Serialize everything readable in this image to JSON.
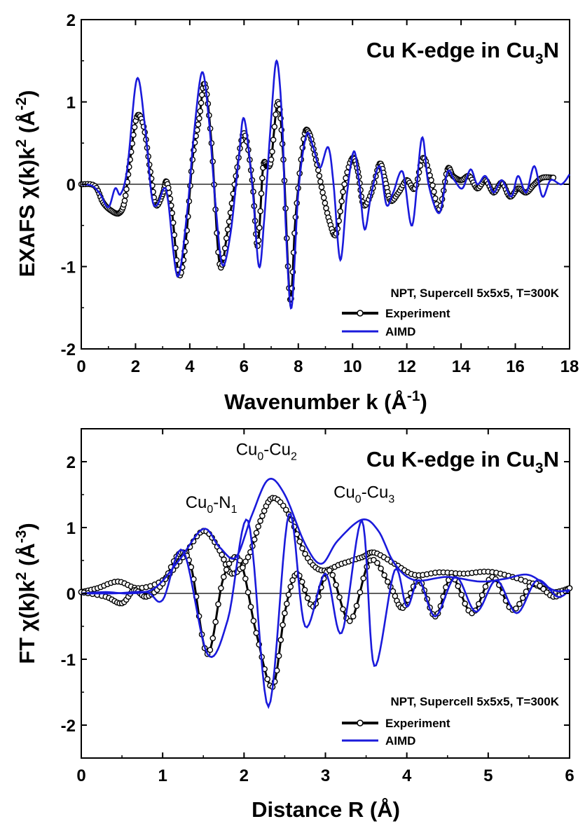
{
  "chart_data": [
    {
      "type": "line",
      "title": "Cu K-edge in Cu",
      "title_sub": "3",
      "title_tail": "N",
      "ylabel_main": "EXAFS χ(k)k",
      "ylabel_sup": "2",
      "ylabel_unit": " (Å",
      "ylabel_unit_sup": "-2",
      "ylabel_close": ")",
      "xlabel_main": "Wavenumber k (Å",
      "xlabel_sup": "-1",
      "xlabel_close": ")",
      "xlim": [
        0,
        18
      ],
      "ylim": [
        -2,
        2
      ],
      "xticks": [
        "0",
        "2",
        "4",
        "6",
        "8",
        "10",
        "12",
        "14",
        "16",
        "18"
      ],
      "yticks": [
        "-2",
        "-1",
        "0",
        "1",
        "2"
      ],
      "legend_title": "NPT, Supercell 5x5x5, T=300K",
      "legend_placement": "bottom-right",
      "grid": false,
      "series": [
        {
          "name": "Experiment",
          "style": "line-open-circles",
          "color": "#000000",
          "values": [
            [
              0,
              0
            ],
            [
              0.5,
              -0.02
            ],
            [
              0.8,
              -0.22
            ],
            [
              1.1,
              -0.32
            ],
            [
              1.4,
              -0.35
            ],
            [
              1.6,
              -0.2
            ],
            [
              1.8,
              0.3
            ],
            [
              2.05,
              0.82
            ],
            [
              2.3,
              0.7
            ],
            [
              2.55,
              0.15
            ],
            [
              2.75,
              -0.25
            ],
            [
              3.0,
              -0.12
            ],
            [
              3.15,
              0.03
            ],
            [
              3.35,
              -0.35
            ],
            [
              3.6,
              -1.1
            ],
            [
              3.85,
              -0.7
            ],
            [
              4.1,
              0.3
            ],
            [
              4.35,
              0.8
            ],
            [
              4.55,
              1.22
            ],
            [
              4.8,
              0.5
            ],
            [
              5.1,
              -0.97
            ],
            [
              5.4,
              -0.55
            ],
            [
              5.7,
              0.1
            ],
            [
              6.0,
              0.62
            ],
            [
              6.3,
              0.05
            ],
            [
              6.5,
              -0.75
            ],
            [
              6.7,
              0.2
            ],
            [
              6.85,
              0.22
            ],
            [
              7.0,
              0.3
            ],
            [
              7.25,
              1.0
            ],
            [
              7.45,
              0.3
            ],
            [
              7.7,
              -1.4
            ],
            [
              7.9,
              -0.4
            ],
            [
              8.2,
              0.55
            ],
            [
              8.4,
              0.62
            ],
            [
              8.65,
              0.3
            ],
            [
              8.9,
              -0.1
            ],
            [
              9.15,
              -0.45
            ],
            [
              9.4,
              -0.6
            ],
            [
              9.7,
              0.0
            ],
            [
              10.0,
              0.32
            ],
            [
              10.2,
              0.15
            ],
            [
              10.4,
              -0.25
            ],
            [
              10.7,
              -0.1
            ],
            [
              11.0,
              0.25
            ],
            [
              11.2,
              0.05
            ],
            [
              11.4,
              -0.2
            ],
            [
              11.7,
              -0.1
            ],
            [
              12.0,
              0.05
            ],
            [
              12.3,
              -0.05
            ],
            [
              12.6,
              0.32
            ],
            [
              12.9,
              0.05
            ],
            [
              13.2,
              -0.3
            ],
            [
              13.5,
              0.18
            ],
            [
              13.7,
              0.1
            ],
            [
              14.0,
              0.05
            ],
            [
              14.3,
              0.1
            ],
            [
              14.6,
              -0.05
            ],
            [
              14.9,
              0.05
            ],
            [
              15.2,
              -0.1
            ],
            [
              15.5,
              0.02
            ],
            [
              15.8,
              -0.15
            ],
            [
              16.1,
              -0.05
            ],
            [
              16.4,
              -0.1
            ],
            [
              16.7,
              0.0
            ],
            [
              17.0,
              0.08
            ],
            [
              17.4,
              0.08
            ]
          ]
        },
        {
          "name": "AIMD",
          "style": "line",
          "color": "#1a1adb",
          "values": [
            [
              0,
              0
            ],
            [
              0.4,
              -0.02
            ],
            [
              0.7,
              -0.12
            ],
            [
              1.0,
              -0.28
            ],
            [
              1.25,
              -0.05
            ],
            [
              1.45,
              -0.12
            ],
            [
              1.7,
              0.2
            ],
            [
              2.05,
              1.28
            ],
            [
              2.35,
              0.7
            ],
            [
              2.6,
              -0.15
            ],
            [
              2.8,
              -0.25
            ],
            [
              3.05,
              -0.05
            ],
            [
              3.2,
              -0.2
            ],
            [
              3.55,
              -1.12
            ],
            [
              3.9,
              -0.35
            ],
            [
              4.15,
              0.6
            ],
            [
              4.45,
              1.36
            ],
            [
              4.7,
              0.8
            ],
            [
              4.95,
              -0.25
            ],
            [
              5.2,
              -0.98
            ],
            [
              5.5,
              -0.6
            ],
            [
              5.8,
              0.3
            ],
            [
              6.0,
              0.8
            ],
            [
              6.3,
              0.0
            ],
            [
              6.55,
              -1.0
            ],
            [
              6.75,
              -0.4
            ],
            [
              7.0,
              0.8
            ],
            [
              7.2,
              1.5
            ],
            [
              7.4,
              0.8
            ],
            [
              7.55,
              -0.6
            ],
            [
              7.75,
              -1.5
            ],
            [
              8.0,
              -0.1
            ],
            [
              8.3,
              0.6
            ],
            [
              8.55,
              0.45
            ],
            [
              8.8,
              0.2
            ],
            [
              9.1,
              0.45
            ],
            [
              9.3,
              0.0
            ],
            [
              9.55,
              -0.92
            ],
            [
              9.8,
              -0.1
            ],
            [
              10.05,
              0.4
            ],
            [
              10.25,
              0.0
            ],
            [
              10.45,
              -0.55
            ],
            [
              10.7,
              -0.1
            ],
            [
              11.0,
              0.22
            ],
            [
              11.25,
              -0.25
            ],
            [
              11.5,
              -0.1
            ],
            [
              11.85,
              0.15
            ],
            [
              12.2,
              -0.5
            ],
            [
              12.55,
              0.56
            ],
            [
              12.8,
              0.0
            ],
            [
              13.2,
              -0.35
            ],
            [
              13.5,
              0.15
            ],
            [
              13.75,
              0.05
            ],
            [
              14.05,
              -0.05
            ],
            [
              14.35,
              0.18
            ],
            [
              14.6,
              0.0
            ],
            [
              14.9,
              0.1
            ],
            [
              15.2,
              -0.1
            ],
            [
              15.5,
              0.05
            ],
            [
              15.85,
              -0.15
            ],
            [
              16.1,
              0.1
            ],
            [
              16.4,
              -0.1
            ],
            [
              16.7,
              0.22
            ],
            [
              17.0,
              -0.15
            ],
            [
              17.3,
              0.05
            ],
            [
              17.7,
              0.0
            ],
            [
              18.0,
              0.12
            ]
          ]
        }
      ]
    },
    {
      "type": "line",
      "title": "Cu K-edge in Cu",
      "title_sub": "3",
      "title_tail": "N",
      "ylabel_main": "FT χ(k)k",
      "ylabel_sup": "2",
      "ylabel_unit": " (Å",
      "ylabel_unit_sup": "-3",
      "ylabel_close": ")",
      "xlabel_main": "Distance R (Å)",
      "xlim": [
        0,
        6
      ],
      "ylim": [
        -2.5,
        2.5
      ],
      "xticks": [
        "0",
        "1",
        "2",
        "3",
        "4",
        "5",
        "6"
      ],
      "yticks": [
        "-2",
        "-1",
        "0",
        "1",
        "2"
      ],
      "legend_title": "NPT, Supercell 5x5x5, T=300K",
      "legend_placement": "bottom-right",
      "grid": false,
      "annotations": [
        {
          "main": "Cu",
          "sub1": "0",
          "mid": "-N",
          "sub2": "1",
          "x": 1.28,
          "y": 1.3
        },
        {
          "main": "Cu",
          "sub1": "0",
          "mid": "-Cu",
          "sub2": "2",
          "x": 1.9,
          "y": 2.1
        },
        {
          "main": "Cu",
          "sub1": "0",
          "mid": "-Cu",
          "sub2": "3",
          "x": 3.1,
          "y": 1.45
        }
      ],
      "series": [
        {
          "name": "Experiment",
          "style": "line-open-circles",
          "color": "#000000",
          "envelope": [
            [
              0,
              0.02
            ],
            [
              0.2,
              0.08
            ],
            [
              0.45,
              0.18
            ],
            [
              0.7,
              0.08
            ],
            [
              1.0,
              0.2
            ],
            [
              1.25,
              0.55
            ],
            [
              1.5,
              0.95
            ],
            [
              1.7,
              0.65
            ],
            [
              1.85,
              0.3
            ],
            [
              2.05,
              0.55
            ],
            [
              2.2,
              1.1
            ],
            [
              2.35,
              1.45
            ],
            [
              2.55,
              1.2
            ],
            [
              2.75,
              0.6
            ],
            [
              2.95,
              0.35
            ],
            [
              3.2,
              0.45
            ],
            [
              3.45,
              0.55
            ],
            [
              3.6,
              0.62
            ],
            [
              3.85,
              0.45
            ],
            [
              4.1,
              0.28
            ],
            [
              4.4,
              0.32
            ],
            [
              4.7,
              0.3
            ],
            [
              5.0,
              0.33
            ],
            [
              5.3,
              0.25
            ],
            [
              5.6,
              0.12
            ],
            [
              5.8,
              0.02
            ],
            [
              6.0,
              0.08
            ]
          ],
          "real": [
            [
              0,
              0.02
            ],
            [
              0.3,
              -0.05
            ],
            [
              0.5,
              -0.15
            ],
            [
              0.65,
              0.05
            ],
            [
              0.8,
              -0.05
            ],
            [
              1.0,
              0.15
            ],
            [
              1.2,
              0.6
            ],
            [
              1.35,
              0.4
            ],
            [
              1.55,
              -0.92
            ],
            [
              1.75,
              0.25
            ],
            [
              1.95,
              0.5
            ],
            [
              2.15,
              -0.6
            ],
            [
              2.35,
              -1.42
            ],
            [
              2.5,
              -0.3
            ],
            [
              2.65,
              0.3
            ],
            [
              2.85,
              -0.2
            ],
            [
              3.05,
              0.35
            ],
            [
              3.3,
              -0.42
            ],
            [
              3.55,
              0.5
            ],
            [
              3.8,
              0.1
            ],
            [
              3.95,
              -0.22
            ],
            [
              4.15,
              0.2
            ],
            [
              4.35,
              -0.35
            ],
            [
              4.55,
              0.25
            ],
            [
              4.8,
              -0.3
            ],
            [
              5.05,
              0.25
            ],
            [
              5.3,
              -0.25
            ],
            [
              5.55,
              0.15
            ],
            [
              5.8,
              -0.05
            ],
            [
              6.0,
              0.08
            ]
          ]
        },
        {
          "name": "AIMD",
          "style": "line",
          "color": "#1a1adb",
          "envelope": [
            [
              0,
              0.0
            ],
            [
              0.3,
              0.02
            ],
            [
              0.6,
              0.0
            ],
            [
              0.9,
              0.08
            ],
            [
              1.2,
              0.5
            ],
            [
              1.5,
              0.98
            ],
            [
              1.7,
              0.7
            ],
            [
              1.9,
              0.55
            ],
            [
              2.1,
              1.2
            ],
            [
              2.3,
              1.73
            ],
            [
              2.5,
              1.5
            ],
            [
              2.75,
              0.75
            ],
            [
              2.95,
              0.45
            ],
            [
              3.15,
              0.8
            ],
            [
              3.45,
              1.12
            ],
            [
              3.65,
              0.95
            ],
            [
              3.85,
              0.45
            ],
            [
              4.1,
              0.2
            ],
            [
              4.5,
              0.25
            ],
            [
              4.9,
              0.18
            ],
            [
              5.2,
              0.22
            ],
            [
              5.5,
              0.28
            ],
            [
              5.8,
              0.05
            ],
            [
              6.0,
              0.05
            ]
          ],
          "real": [
            [
              0,
              0.0
            ],
            [
              0.4,
              0.0
            ],
            [
              0.8,
              0.02
            ],
            [
              1.0,
              -0.1
            ],
            [
              1.25,
              0.65
            ],
            [
              1.55,
              -0.92
            ],
            [
              1.8,
              -0.4
            ],
            [
              2.05,
              1.1
            ],
            [
              2.3,
              -1.72
            ],
            [
              2.55,
              1.2
            ],
            [
              2.75,
              -0.5
            ],
            [
              3.0,
              0.3
            ],
            [
              3.2,
              -0.6
            ],
            [
              3.45,
              1.1
            ],
            [
              3.6,
              -1.1
            ],
            [
              3.85,
              0.35
            ],
            [
              4.0,
              -0.2
            ],
            [
              4.15,
              0.2
            ],
            [
              4.35,
              -0.35
            ],
            [
              4.6,
              0.25
            ],
            [
              4.85,
              -0.28
            ],
            [
              5.1,
              0.2
            ],
            [
              5.35,
              -0.3
            ],
            [
              5.6,
              0.2
            ],
            [
              5.85,
              -0.05
            ],
            [
              6.0,
              0.05
            ]
          ]
        }
      ]
    }
  ]
}
